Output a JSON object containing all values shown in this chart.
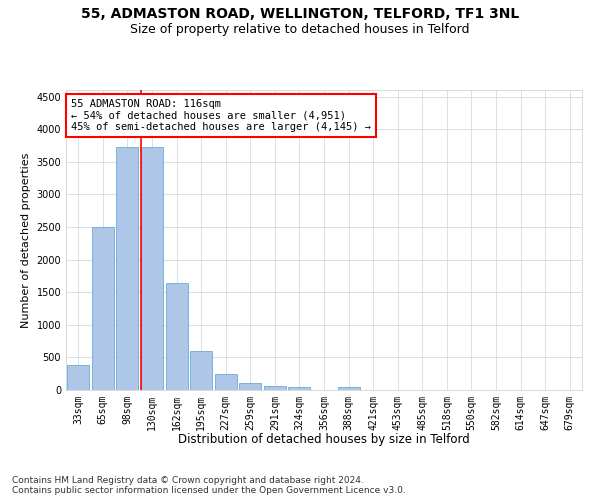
{
  "title1": "55, ADMASTON ROAD, WELLINGTON, TELFORD, TF1 3NL",
  "title2": "Size of property relative to detached houses in Telford",
  "xlabel": "Distribution of detached houses by size in Telford",
  "ylabel": "Number of detached properties",
  "categories": [
    "33sqm",
    "65sqm",
    "98sqm",
    "130sqm",
    "162sqm",
    "195sqm",
    "227sqm",
    "259sqm",
    "291sqm",
    "324sqm",
    "356sqm",
    "388sqm",
    "421sqm",
    "453sqm",
    "485sqm",
    "518sqm",
    "550sqm",
    "582sqm",
    "614sqm",
    "647sqm",
    "679sqm"
  ],
  "values": [
    380,
    2500,
    3730,
    3720,
    1640,
    600,
    240,
    100,
    55,
    45,
    0,
    50,
    0,
    0,
    0,
    0,
    0,
    0,
    0,
    0,
    0
  ],
  "bar_color": "#aec6e8",
  "bar_edge_color": "#6aaad4",
  "grid_color": "#d0dce8",
  "annotation_line1": "55 ADMASTON ROAD: 116sqm",
  "annotation_line2": "← 54% of detached houses are smaller (4,951)",
  "annotation_line3": "45% of semi-detached houses are larger (4,145) →",
  "annotation_box_color": "white",
  "annotation_box_edgecolor": "red",
  "vline_color": "red",
  "vline_x": 2.56,
  "ylim": [
    0,
    4600
  ],
  "yticks": [
    0,
    500,
    1000,
    1500,
    2000,
    2500,
    3000,
    3500,
    4000,
    4500
  ],
  "footer": "Contains HM Land Registry data © Crown copyright and database right 2024.\nContains public sector information licensed under the Open Government Licence v3.0.",
  "title1_fontsize": 10,
  "title2_fontsize": 9,
  "xlabel_fontsize": 8.5,
  "ylabel_fontsize": 8,
  "tick_fontsize": 7,
  "annotation_fontsize": 7.5,
  "footer_fontsize": 6.5
}
